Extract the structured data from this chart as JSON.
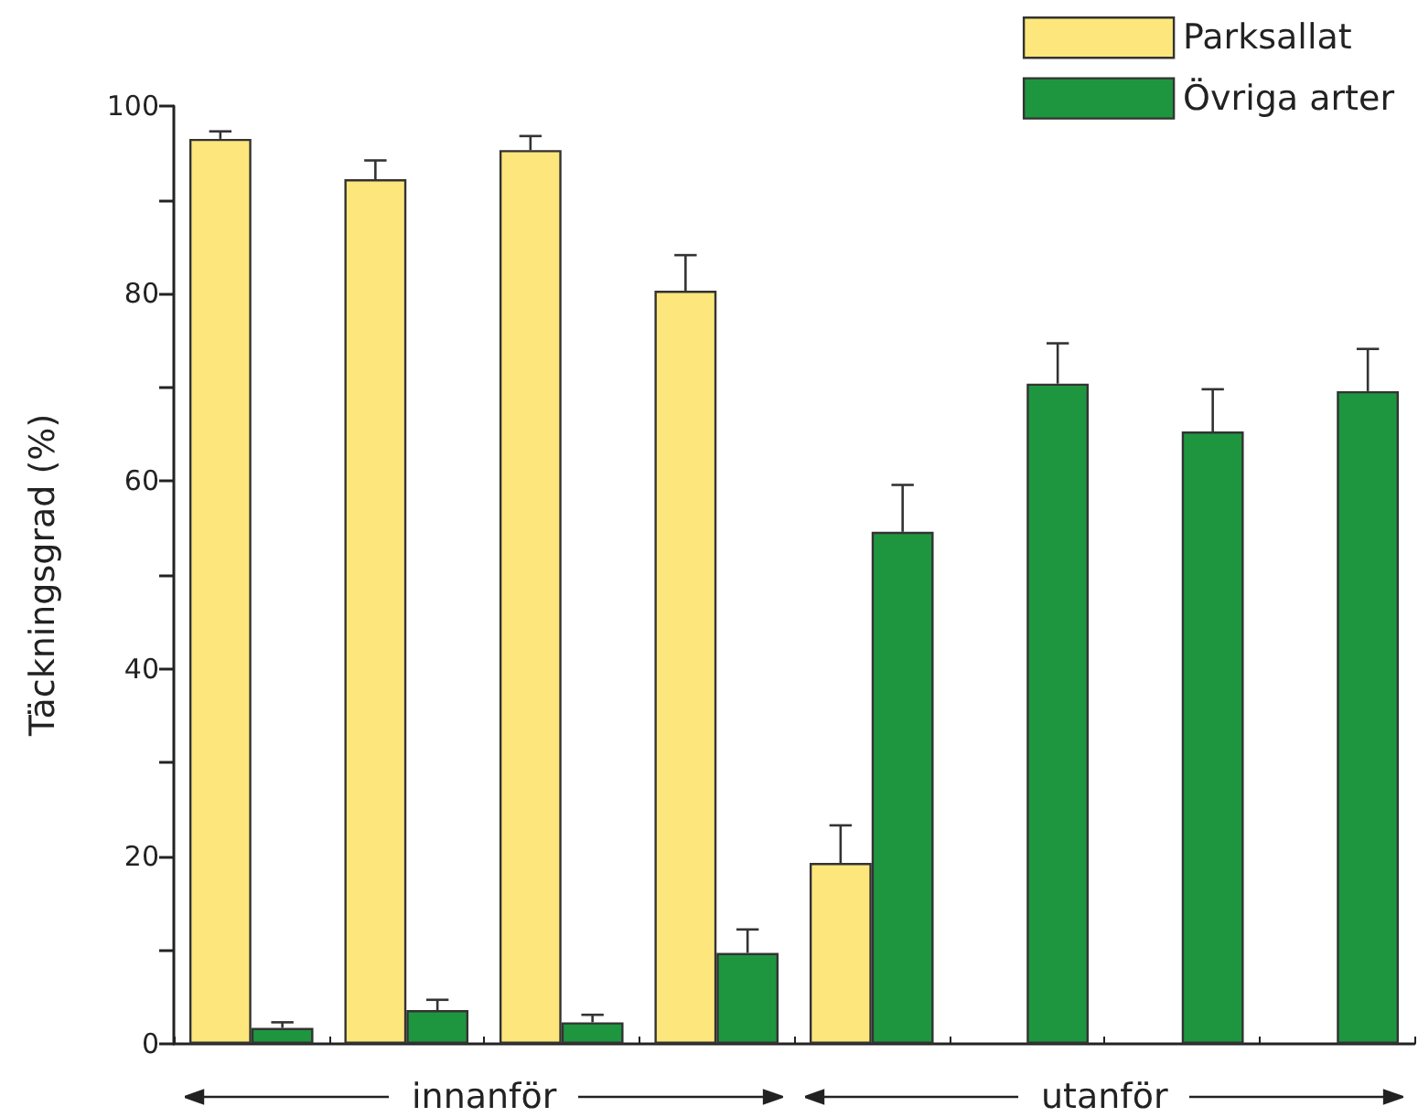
{
  "chart_data": {
    "type": "bar",
    "ylabel": "Täckningsgrad (%)",
    "categories": [
      null,
      null,
      null,
      null,
      null,
      null,
      null,
      null
    ],
    "series": [
      {
        "name": "Parksallat",
        "color": "#fde77c",
        "values": [
          96.5,
          92.2,
          95.3,
          80.3,
          19.3,
          null,
          null,
          null
        ],
        "errors": [
          [
            96.5,
            97.3
          ],
          [
            92.2,
            94.2
          ],
          [
            95.3,
            96.8
          ],
          [
            80.3,
            84.1
          ],
          [
            19.3,
            23.3
          ],
          null,
          null,
          null
        ]
      },
      {
        "name": "Övriga arter",
        "color": "#1e9640",
        "values": [
          1.7,
          3.6,
          2.3,
          9.7,
          54.6,
          70.4,
          65.3,
          69.6
        ],
        "errors": [
          [
            1.7,
            2.3
          ],
          [
            3.6,
            4.7
          ],
          [
            2.3,
            3.1
          ],
          [
            9.7,
            12.2
          ],
          [
            54.6,
            59.6
          ],
          [
            70.4,
            74.7
          ],
          [
            65.3,
            69.8
          ],
          [
            69.6,
            74.1
          ]
        ]
      }
    ],
    "ylim": [
      0,
      100
    ],
    "yticks": [
      0,
      {
        "value": 10,
        "label": null
      },
      20,
      {
        "value": 30,
        "label": null
      },
      40,
      {
        "value": 50,
        "label": null
      },
      60,
      {
        "value": 70,
        "label": null
      },
      80,
      {
        "value": 90,
        "label": null
      },
      100
    ],
    "grid": false,
    "legend": "top right",
    "annotations": [
      "innanför",
      "utanför"
    ]
  }
}
